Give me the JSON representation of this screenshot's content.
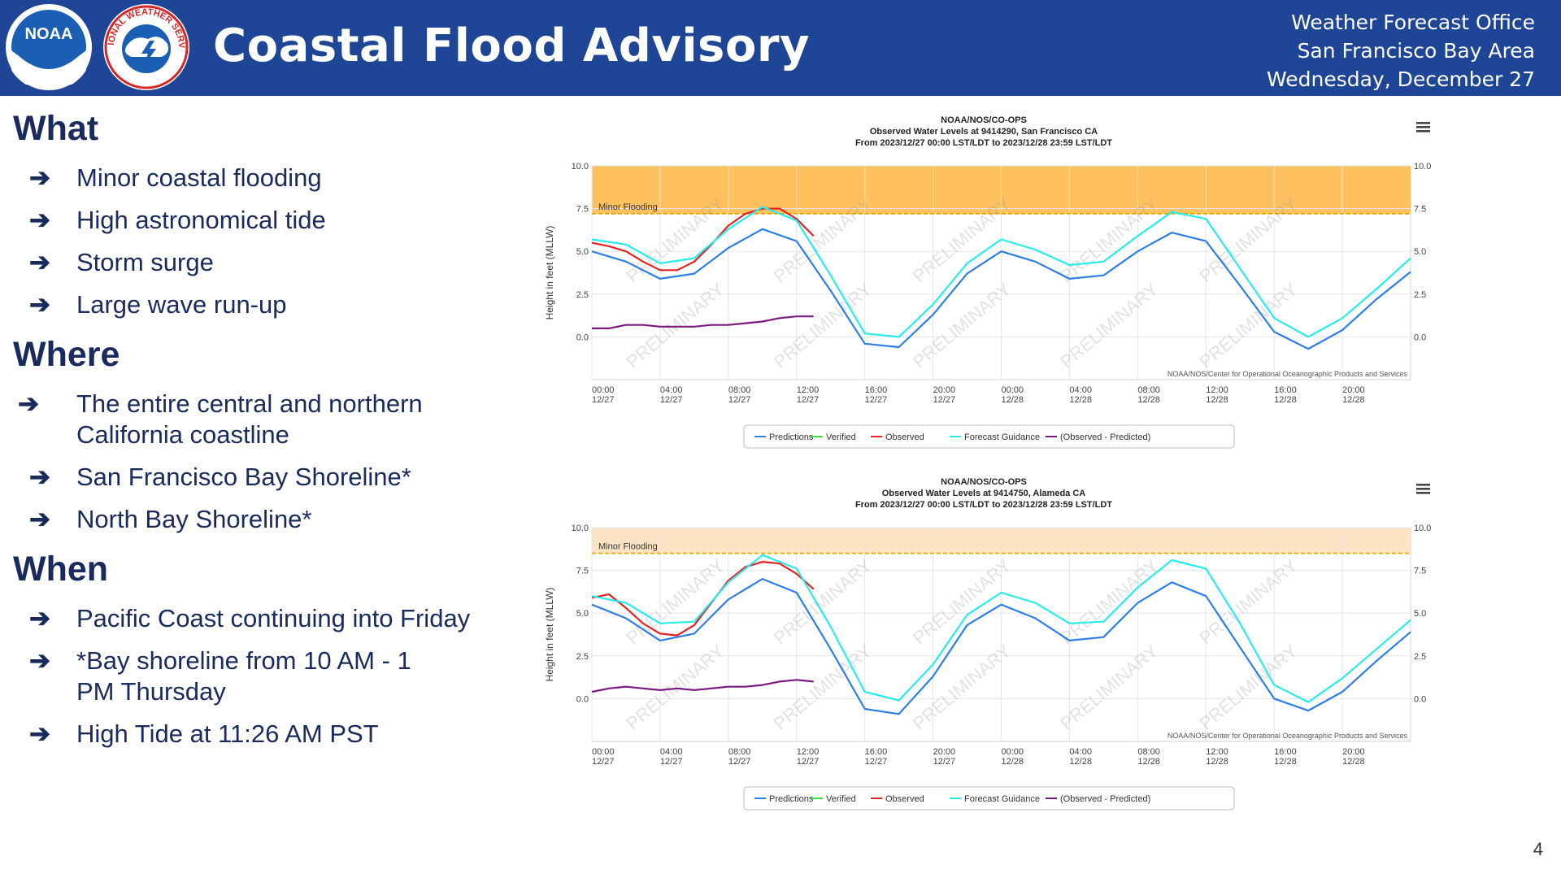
{
  "header": {
    "title": "Coastal Flood Advisory",
    "office_lines": [
      "Weather Forecast Office",
      "San Francisco Bay Area",
      "Wednesday, December 27"
    ],
    "colors": {
      "banner": "#1f4597"
    },
    "logos": [
      {
        "name": "noaa-logo",
        "text": "NOAA"
      },
      {
        "name": "nws-logo",
        "text": "NATIONAL WEATHER SERVICE"
      }
    ]
  },
  "sections": [
    {
      "heading": "What",
      "items": [
        "Minor coastal flooding",
        "High astronomical tide",
        "Storm surge",
        "Large wave run-up"
      ]
    },
    {
      "heading": "Where",
      "items": [
        "The entire central and northern California coastline",
        "San Francisco Bay Shoreline*",
        "North Bay Shoreline*"
      ]
    },
    {
      "heading": "When",
      "items": [
        "Pacific Coast continuing into Friday",
        "*Bay shoreline from 10 AM - 1 PM Thursday",
        "High Tide at 11:26 AM PST"
      ]
    }
  ],
  "page_number": "4",
  "chart_data": [
    {
      "type": "line",
      "title": "NOAA/NOS/CO-OPS",
      "subtitle": "Observed Water Levels at 9414290, San Francisco CA",
      "subtitle2": "From 2023/12/27 00:00 LST/LDT to 2023/12/28 23:59 LST/LDT",
      "ylabel": "Height in feet (MLLW)",
      "ylim": [
        -2.5,
        10.0
      ],
      "yticks": [
        "10.0",
        "7.5",
        "5.0",
        "2.5",
        "0.0"
      ],
      "xlim": [
        0,
        48
      ],
      "xticks": [
        [
          "00:00",
          "12/27"
        ],
        [
          "04:00",
          "12/27"
        ],
        [
          "08:00",
          "12/27"
        ],
        [
          "12:00",
          "12/27"
        ],
        [
          "16:00",
          "12/27"
        ],
        [
          "20:00",
          "12/27"
        ],
        [
          "00:00",
          "12/28"
        ],
        [
          "04:00",
          "12/28"
        ],
        [
          "08:00",
          "12/28"
        ],
        [
          "12:00",
          "12/28"
        ],
        [
          "16:00",
          "12/28"
        ],
        [
          "20:00",
          "12/28"
        ]
      ],
      "flood_threshold": 7.2,
      "flood_label": "Minor Flooding",
      "flood_band_color": "#ffc15e",
      "watermark": "PRELIMINARY",
      "credit": "NOAA/NOS/Center for Operational Oceanographic Products and Services",
      "legend": [
        "Predictions",
        "Verified",
        "Observed",
        "Forecast Guidance",
        "(Observed - Predicted)"
      ],
      "legend_position": "bottom",
      "colors": {
        "Predictions": "#2d7ee6",
        "Verified": "#36e236",
        "Observed": "#e52222",
        "Forecast Guidance": "#28ecec",
        "(Observed - Predicted)": "#7a1a80"
      },
      "series": [
        {
          "name": "Predictions",
          "x": [
            0,
            2,
            4,
            6,
            8,
            10,
            12,
            14,
            16,
            18,
            20,
            22,
            24,
            26,
            28,
            30,
            32,
            34,
            36,
            38,
            40,
            42,
            44,
            46,
            48
          ],
          "y": [
            5.0,
            4.4,
            3.4,
            3.7,
            5.2,
            6.3,
            5.6,
            2.7,
            -0.4,
            -0.6,
            1.3,
            3.7,
            5.0,
            4.4,
            3.4,
            3.6,
            5.0,
            6.1,
            5.6,
            3.0,
            0.3,
            -0.7,
            0.4,
            2.2,
            3.8
          ]
        },
        {
          "name": "Observed",
          "x": [
            0,
            1,
            2,
            3,
            4,
            5,
            6,
            7,
            8,
            9,
            10,
            11,
            12,
            13
          ],
          "y": [
            5.5,
            5.3,
            5.0,
            4.4,
            3.9,
            3.9,
            4.4,
            5.4,
            6.5,
            7.2,
            7.5,
            7.5,
            6.9,
            5.9
          ]
        },
        {
          "name": "Forecast Guidance",
          "x": [
            0,
            2,
            4,
            6,
            8,
            10,
            12,
            14,
            16,
            18,
            20,
            22,
            24,
            26,
            28,
            30,
            32,
            34,
            36,
            38,
            40,
            42,
            44,
            46,
            48
          ],
          "y": [
            5.7,
            5.4,
            4.3,
            4.6,
            6.3,
            7.6,
            6.8,
            3.6,
            0.2,
            0.0,
            1.9,
            4.3,
            5.7,
            5.1,
            4.2,
            4.4,
            5.9,
            7.3,
            6.9,
            4.0,
            1.1,
            0.0,
            1.1,
            2.8,
            4.6
          ]
        },
        {
          "name": "(Observed - Predicted)",
          "x": [
            0,
            1,
            2,
            3,
            4,
            5,
            6,
            7,
            8,
            9,
            10,
            11,
            12,
            13
          ],
          "y": [
            0.5,
            0.5,
            0.7,
            0.7,
            0.6,
            0.6,
            0.6,
            0.7,
            0.7,
            0.8,
            0.9,
            1.1,
            1.2,
            1.2
          ]
        }
      ]
    },
    {
      "type": "line",
      "title": "NOAA/NOS/CO-OPS",
      "subtitle": "Observed Water Levels at 9414750, Alameda CA",
      "subtitle2": "From 2023/12/27 00:00 LST/LDT to 2023/12/28 23:59 LST/LDT",
      "ylabel": "Height in feet (MLLW)",
      "ylim": [
        -2.5,
        10.0
      ],
      "yticks": [
        "10.0",
        "7.5",
        "5.0",
        "2.5",
        "0.0"
      ],
      "xlim": [
        0,
        48
      ],
      "xticks": [
        [
          "00:00",
          "12/27"
        ],
        [
          "04:00",
          "12/27"
        ],
        [
          "08:00",
          "12/27"
        ],
        [
          "12:00",
          "12/27"
        ],
        [
          "16:00",
          "12/27"
        ],
        [
          "20:00",
          "12/27"
        ],
        [
          "00:00",
          "12/28"
        ],
        [
          "04:00",
          "12/28"
        ],
        [
          "08:00",
          "12/28"
        ],
        [
          "12:00",
          "12/28"
        ],
        [
          "16:00",
          "12/28"
        ],
        [
          "20:00",
          "12/28"
        ]
      ],
      "flood_threshold": 8.5,
      "flood_label": "Minor Flooding",
      "flood_band_color": "#fce3c4",
      "watermark": "PRELIMINARY",
      "credit": "NOAA/NOS/Center for Operational Oceanographic Products and Services",
      "legend": [
        "Predictions",
        "Verified",
        "Observed",
        "Forecast Guidance",
        "(Observed - Predicted)"
      ],
      "legend_position": "bottom",
      "colors": {
        "Predictions": "#2d7ee6",
        "Verified": "#36e236",
        "Observed": "#e52222",
        "Forecast Guidance": "#28ecec",
        "(Observed - Predicted)": "#7a1a80"
      },
      "series": [
        {
          "name": "Predictions",
          "x": [
            0,
            2,
            4,
            6,
            8,
            10,
            12,
            14,
            16,
            18,
            20,
            22,
            24,
            26,
            28,
            30,
            32,
            34,
            36,
            38,
            40,
            42,
            44,
            46,
            48
          ],
          "y": [
            5.5,
            4.7,
            3.4,
            3.8,
            5.8,
            7.0,
            6.2,
            2.9,
            -0.6,
            -0.9,
            1.3,
            4.3,
            5.5,
            4.7,
            3.4,
            3.6,
            5.6,
            6.8,
            6.0,
            3.0,
            0.0,
            -0.7,
            0.4,
            2.2,
            3.9
          ]
        },
        {
          "name": "Observed",
          "x": [
            0,
            1,
            2,
            3,
            4,
            5,
            6,
            7,
            8,
            9,
            10,
            11,
            12,
            13
          ],
          "y": [
            5.9,
            6.1,
            5.3,
            4.4,
            3.8,
            3.7,
            4.3,
            5.6,
            6.9,
            7.7,
            8.0,
            7.9,
            7.3,
            6.4
          ]
        },
        {
          "name": "Forecast Guidance",
          "x": [
            0,
            2,
            4,
            6,
            8,
            10,
            12,
            14,
            16,
            18,
            20,
            22,
            24,
            26,
            28,
            30,
            32,
            34,
            36,
            38,
            40,
            42,
            44,
            46,
            48
          ],
          "y": [
            6.0,
            5.6,
            4.4,
            4.5,
            6.8,
            8.4,
            7.6,
            4.2,
            0.4,
            -0.1,
            2.0,
            4.9,
            6.2,
            5.6,
            4.4,
            4.5,
            6.5,
            8.1,
            7.6,
            4.4,
            0.8,
            -0.2,
            1.2,
            2.9,
            4.6
          ]
        },
        {
          "name": "(Observed - Predicted)",
          "x": [
            0,
            1,
            2,
            3,
            4,
            5,
            6,
            7,
            8,
            9,
            10,
            11,
            12,
            13
          ],
          "y": [
            0.4,
            0.6,
            0.7,
            0.6,
            0.5,
            0.6,
            0.5,
            0.6,
            0.7,
            0.7,
            0.8,
            1.0,
            1.1,
            1.0
          ]
        }
      ]
    }
  ]
}
